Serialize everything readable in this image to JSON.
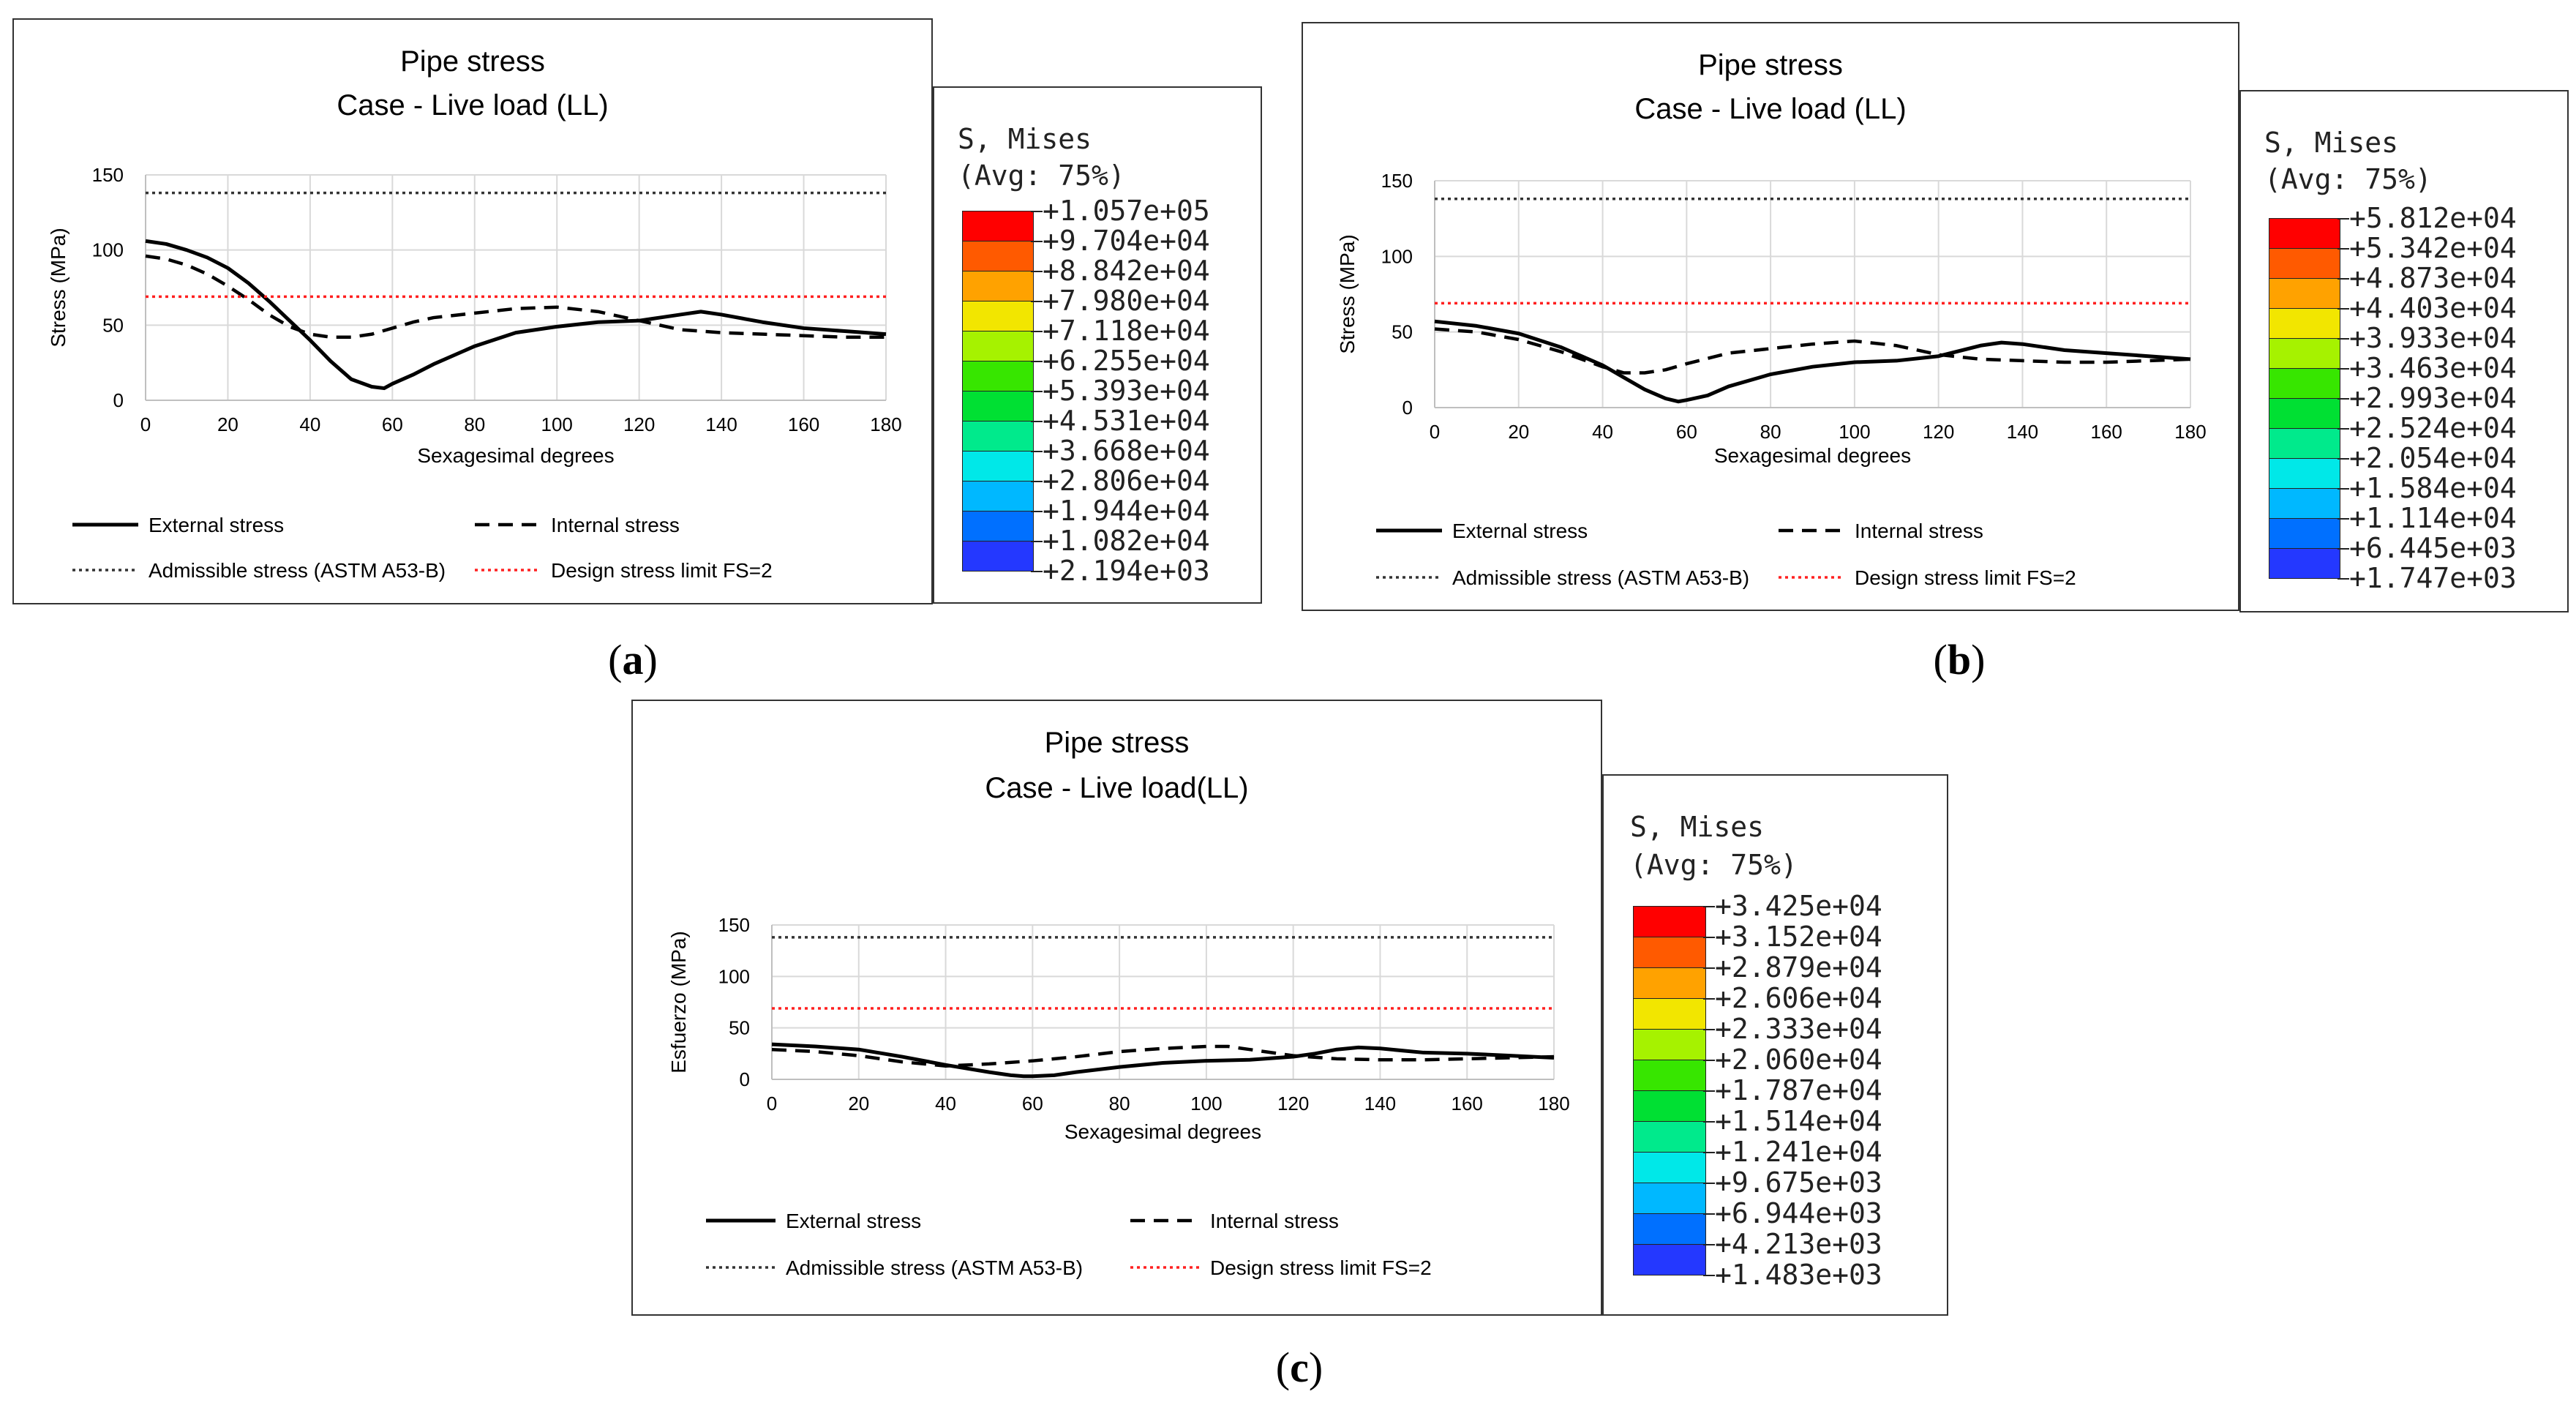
{
  "panels": [
    {
      "id": "a",
      "caption_open": "(",
      "caption_letter": "a",
      "caption_close": ")",
      "title_line1": "Pipe stress",
      "title_line2": "Case - Live load (LL)",
      "legend": {
        "title_line1": "S, Mises",
        "title_line2": "(Avg: 75%)",
        "values": [
          "+1.057e+05",
          "+9.704e+04",
          "+8.842e+04",
          "+7.980e+04",
          "+7.118e+04",
          "+6.255e+04",
          "+5.393e+04",
          "+4.531e+04",
          "+3.668e+04",
          "+2.806e+04",
          "+1.944e+04",
          "+1.082e+04",
          "+2.194e+03"
        ]
      }
    },
    {
      "id": "b",
      "caption_open": "(",
      "caption_letter": "b",
      "caption_close": ")",
      "title_line1": "Pipe stress",
      "title_line2": "Case - Live load (LL)",
      "legend": {
        "title_line1": "S, Mises",
        "title_line2": "(Avg: 75%)",
        "values": [
          "+5.812e+04",
          "+5.342e+04",
          "+4.873e+04",
          "+4.403e+04",
          "+3.933e+04",
          "+3.463e+04",
          "+2.993e+04",
          "+2.524e+04",
          "+2.054e+04",
          "+1.584e+04",
          "+1.114e+04",
          "+6.445e+03",
          "+1.747e+03"
        ]
      }
    },
    {
      "id": "c",
      "caption_open": "(",
      "caption_letter": "c",
      "caption_close": ")",
      "title_line1": "Pipe stress",
      "title_line2": "Case - Live load(LL)",
      "legend": {
        "title_line1": "S, Mises",
        "title_line2": "(Avg: 75%)",
        "values": [
          "+3.425e+04",
          "+3.152e+04",
          "+2.879e+04",
          "+2.606e+04",
          "+2.333e+04",
          "+2.060e+04",
          "+1.787e+04",
          "+1.514e+04",
          "+1.241e+04",
          "+9.675e+03",
          "+6.944e+03",
          "+4.213e+03",
          "+1.483e+03"
        ]
      }
    }
  ],
  "colors": {
    "external": "#000000",
    "internal": "#000000",
    "admissible": "#333333",
    "design_limit": "#ff2020",
    "grid": "#d9d9d9",
    "colorbar": [
      "#ff0000",
      "#ff5a00",
      "#ffa200",
      "#f2e600",
      "#a6f200",
      "#37e600",
      "#00e033",
      "#00ea8c",
      "#00e8e8",
      "#00b8ff",
      "#0070ff",
      "#2438ff",
      "#0000f2"
    ]
  },
  "chart_data": [
    {
      "type": "line",
      "panel": "a",
      "title": "Pipe stress / Case - Live load (LL)",
      "xlabel": "Sexagesimal degrees",
      "ylabel": "Stress (MPa)",
      "xlim": [
        0,
        180
      ],
      "ylim": [
        0,
        150
      ],
      "xticks": [
        0,
        20,
        40,
        60,
        80,
        100,
        120,
        140,
        160,
        180
      ],
      "yticks": [
        0,
        50,
        100,
        150
      ],
      "grid": true,
      "legend_labels": [
        "External stress",
        "Internal stress",
        "Admissible stress (ASTM A53-B)",
        "Design stress limit FS=2"
      ],
      "series": [
        {
          "name": "External stress",
          "style": "solid",
          "x": [
            0,
            5,
            10,
            15,
            20,
            25,
            30,
            35,
            40,
            45,
            50,
            55,
            58,
            60,
            65,
            70,
            80,
            90,
            100,
            110,
            120,
            125,
            130,
            135,
            140,
            150,
            160,
            170,
            180
          ],
          "y": [
            106,
            104,
            100,
            95,
            88,
            78,
            66,
            53,
            40,
            26,
            14,
            9,
            8,
            11,
            17,
            24,
            36,
            45,
            49,
            52,
            53,
            55,
            57,
            59,
            57,
            52,
            48,
            46,
            44
          ]
        },
        {
          "name": "Internal stress",
          "style": "dashed",
          "x": [
            0,
            5,
            10,
            15,
            20,
            25,
            30,
            35,
            40,
            45,
            50,
            55,
            60,
            65,
            70,
            80,
            90,
            100,
            110,
            120,
            130,
            140,
            150,
            160,
            170,
            180
          ],
          "y": [
            96,
            94,
            90,
            84,
            76,
            67,
            57,
            49,
            44,
            42,
            42,
            44,
            48,
            52,
            55,
            58,
            61,
            62,
            59,
            53,
            47,
            45,
            44,
            43,
            42,
            42
          ]
        },
        {
          "name": "Admissible stress (ASTM A53-B)",
          "style": "dotted",
          "x": [
            0,
            180
          ],
          "y": [
            138,
            138
          ]
        },
        {
          "name": "Design stress limit FS=2",
          "style": "dotted-red",
          "x": [
            0,
            180
          ],
          "y": [
            69,
            69
          ]
        }
      ]
    },
    {
      "type": "line",
      "panel": "b",
      "title": "Pipe stress / Case - Live load (LL)",
      "xlabel": "Sexagesimal degrees",
      "ylabel": "Stress (MPa)",
      "xlim": [
        0,
        180
      ],
      "ylim": [
        0,
        150
      ],
      "xticks": [
        0,
        20,
        40,
        60,
        80,
        100,
        120,
        140,
        160,
        180
      ],
      "yticks": [
        0,
        50,
        100,
        150
      ],
      "grid": true,
      "legend_labels": [
        "External stress",
        "Internal stress",
        "Admissible stress (ASTM A53-B)",
        "Design stress limit FS=2"
      ],
      "series": [
        {
          "name": "External stress",
          "style": "solid",
          "x": [
            0,
            10,
            20,
            30,
            40,
            45,
            50,
            55,
            58,
            60,
            65,
            70,
            80,
            90,
            100,
            110,
            120,
            130,
            135,
            140,
            150,
            160,
            170,
            180
          ],
          "y": [
            57,
            54,
            49,
            40,
            28,
            20,
            12,
            6,
            4,
            5,
            8,
            14,
            22,
            27,
            30,
            31,
            34,
            41,
            43,
            42,
            38,
            36,
            34,
            32
          ]
        },
        {
          "name": "Internal stress",
          "style": "dashed",
          "x": [
            0,
            10,
            20,
            30,
            40,
            45,
            50,
            55,
            60,
            70,
            80,
            90,
            100,
            110,
            120,
            130,
            140,
            150,
            160,
            170,
            180
          ],
          "y": [
            52,
            50,
            45,
            37,
            27,
            23,
            23,
            25,
            29,
            36,
            39,
            42,
            44,
            41,
            35,
            32,
            31,
            30,
            30,
            31,
            32
          ]
        },
        {
          "name": "Admissible stress (ASTM A53-B)",
          "style": "dotted",
          "x": [
            0,
            180
          ],
          "y": [
            138,
            138
          ]
        },
        {
          "name": "Design stress limit FS=2",
          "style": "dotted-red",
          "x": [
            0,
            180
          ],
          "y": [
            69,
            69
          ]
        }
      ]
    },
    {
      "type": "line",
      "panel": "c",
      "title": "Pipe stress / Case - Live load(LL)",
      "xlabel": "Sexagesimal degrees",
      "ylabel": "Esfuerzo (MPa)",
      "xlim": [
        0,
        180
      ],
      "ylim": [
        0,
        150
      ],
      "xticks": [
        0,
        20,
        40,
        60,
        80,
        100,
        120,
        140,
        160,
        180
      ],
      "yticks": [
        0,
        50,
        100,
        150
      ],
      "grid": true,
      "legend_labels": [
        "External stress",
        "Internal stress",
        "Admissible stress (ASTM A53-B)",
        "Design stress limit FS=2"
      ],
      "series": [
        {
          "name": "External stress",
          "style": "solid",
          "x": [
            0,
            10,
            20,
            30,
            40,
            50,
            55,
            58,
            60,
            65,
            70,
            80,
            90,
            100,
            110,
            120,
            125,
            130,
            135,
            140,
            150,
            160,
            170,
            180
          ],
          "y": [
            34,
            32,
            29,
            22,
            14,
            7,
            4,
            3,
            3,
            4,
            7,
            12,
            16,
            18,
            19,
            22,
            25,
            29,
            31,
            30,
            26,
            25,
            23,
            21
          ]
        },
        {
          "name": "Internal stress",
          "style": "dashed",
          "x": [
            0,
            10,
            20,
            30,
            40,
            50,
            60,
            70,
            80,
            90,
            100,
            105,
            110,
            120,
            130,
            140,
            150,
            160,
            170,
            180
          ],
          "y": [
            29,
            27,
            23,
            17,
            13,
            15,
            18,
            22,
            27,
            30,
            32,
            32,
            29,
            23,
            20,
            19,
            19,
            20,
            21,
            22
          ]
        },
        {
          "name": "Admissible stress (ASTM A53-B)",
          "style": "dotted",
          "x": [
            0,
            180
          ],
          "y": [
            138,
            138
          ]
        },
        {
          "name": "Design stress limit FS=2",
          "style": "dotted-red",
          "x": [
            0,
            180
          ],
          "y": [
            69,
            69
          ]
        }
      ]
    }
  ]
}
